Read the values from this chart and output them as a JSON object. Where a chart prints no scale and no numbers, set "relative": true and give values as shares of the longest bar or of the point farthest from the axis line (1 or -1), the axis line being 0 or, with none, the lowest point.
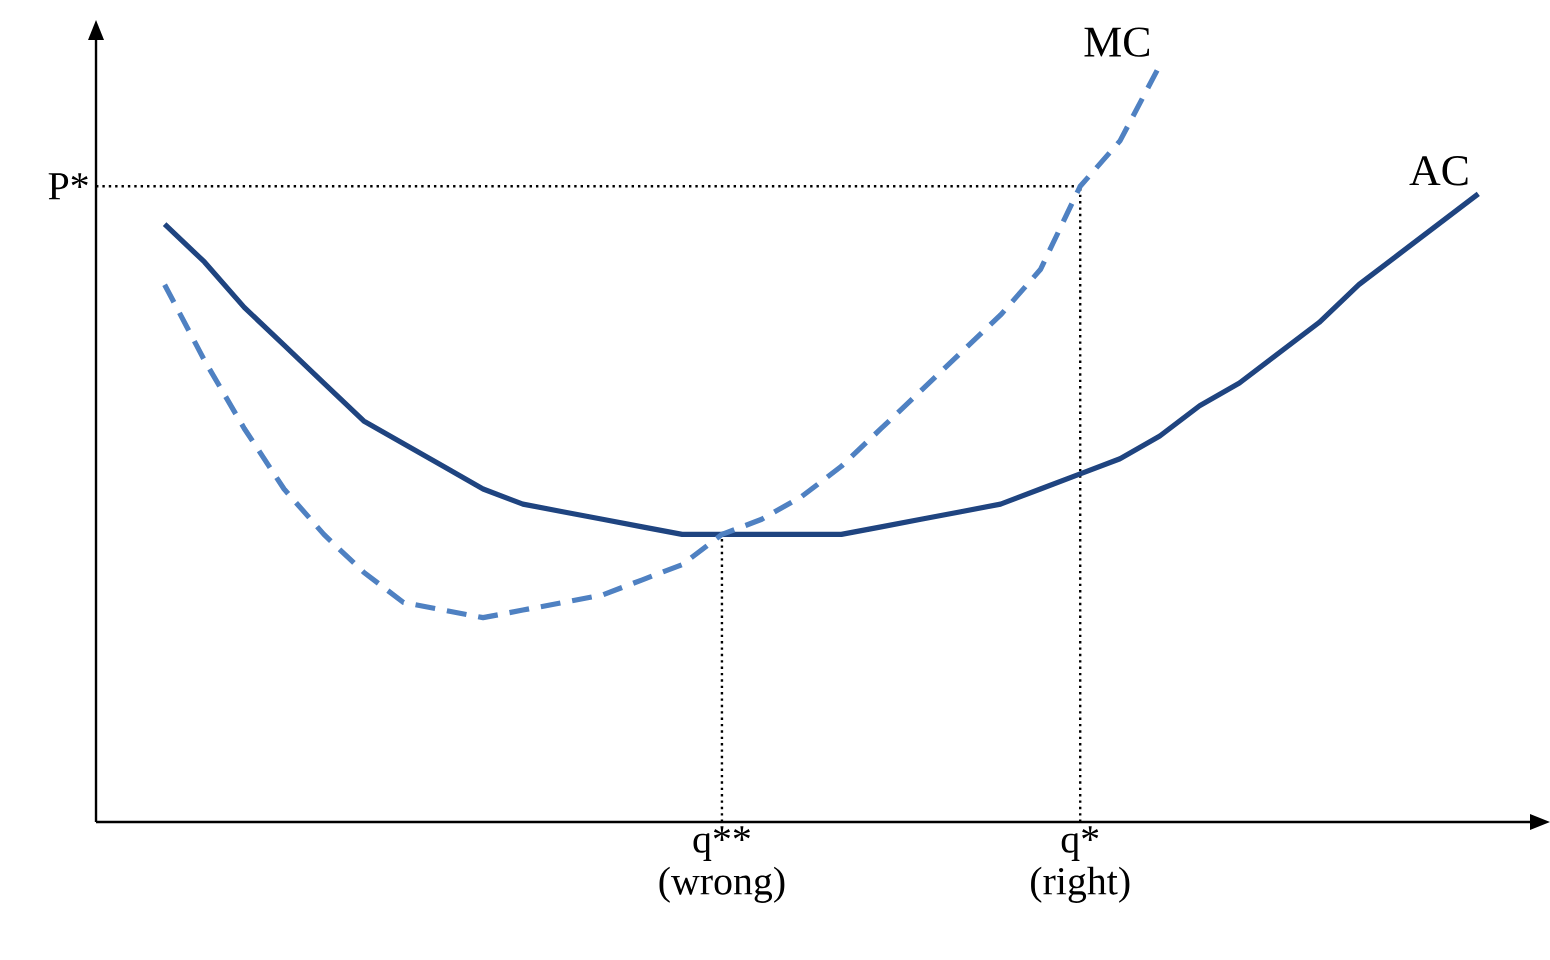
{
  "chart_data": {
    "type": "line",
    "relative": true,
    "categories": [
      null,
      null,
      null,
      null,
      null,
      null,
      null,
      null,
      null,
      null,
      null,
      null,
      null,
      null,
      "q** (wrong)",
      null,
      null,
      null,
      null,
      null,
      null,
      null,
      null,
      "q* (right)",
      null,
      null,
      null,
      null,
      null,
      null,
      null,
      null,
      null,
      null
    ],
    "series": [
      {
        "name": "AC",
        "color": "#1f4480",
        "line_style": "solid",
        "values": [
          0.79,
          0.74,
          0.68,
          0.63,
          0.58,
          0.53,
          0.5,
          0.47,
          0.44,
          0.42,
          0.41,
          0.4,
          0.39,
          0.38,
          0.38,
          0.38,
          0.38,
          0.38,
          0.39,
          0.4,
          0.41,
          0.42,
          0.44,
          0.46,
          0.48,
          0.51,
          0.55,
          0.58,
          0.62,
          0.66,
          0.71,
          0.75,
          0.79,
          0.83
        ]
      },
      {
        "name": "MC",
        "color": "#4f81c2",
        "line_style": "dashed",
        "values": [
          0.71,
          0.61,
          0.52,
          0.44,
          0.38,
          0.33,
          0.29,
          0.28,
          0.27,
          0.28,
          0.29,
          0.3,
          0.32,
          0.34,
          0.38,
          0.4,
          0.43,
          0.47,
          0.52,
          0.57,
          0.62,
          0.67,
          0.73,
          0.84,
          0.9,
          1.0,
          null,
          null,
          null,
          null,
          null,
          null,
          null,
          null
        ]
      }
    ],
    "ref_lines": [
      {
        "axis": "y",
        "value": 0.84,
        "label": "P*",
        "line_style": "dotted"
      },
      {
        "axis": "x",
        "value": "q** (wrong)",
        "line_style": "dotted"
      },
      {
        "axis": "x",
        "value": "q* (right)",
        "line_style": "dotted"
      }
    ]
  }
}
